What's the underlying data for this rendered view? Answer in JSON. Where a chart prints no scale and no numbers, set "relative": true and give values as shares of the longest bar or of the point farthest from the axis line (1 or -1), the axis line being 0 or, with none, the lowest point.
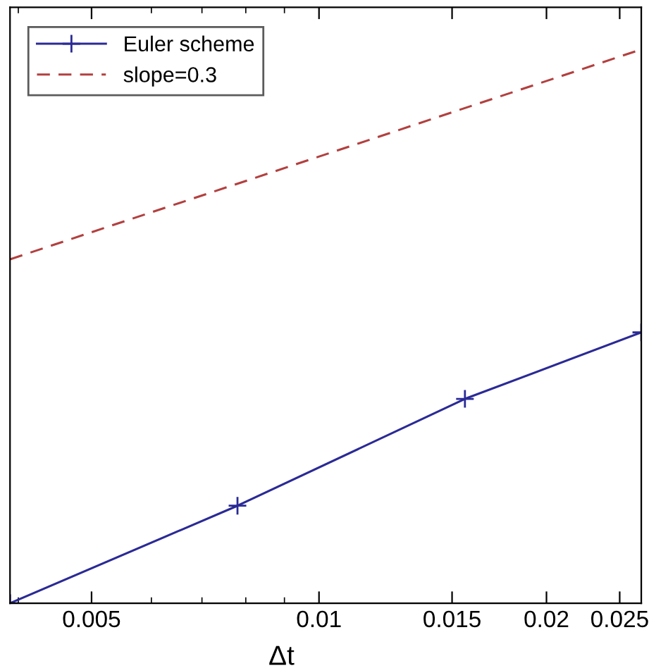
{
  "chart_data": {
    "type": "line",
    "relative": true,
    "xlabel": "Δt",
    "log": "x",
    "xlim": [
      0.0039,
      0.0267
    ],
    "xticks": [
      0.005,
      0.01,
      0.015,
      0.02,
      0.025
    ],
    "tick_labels": "x",
    "legend": "top left",
    "grid": false,
    "series": [
      {
        "name": "Euler scheme",
        "color": "#2a2a96",
        "x": [
          0.0039,
          0.0078,
          0.0156,
          0.0267
        ],
        "values": [
          0,
          0.176,
          0.369,
          0.489
        ],
        "marker": "cross",
        "line_style": "solid"
      },
      {
        "name": "slope=0.3",
        "color": "#b2403f",
        "x": [
          0.0039,
          0.0267
        ],
        "values": [
          0.621,
          1
        ],
        "marker": "none",
        "line_style": "dashed"
      }
    ]
  }
}
